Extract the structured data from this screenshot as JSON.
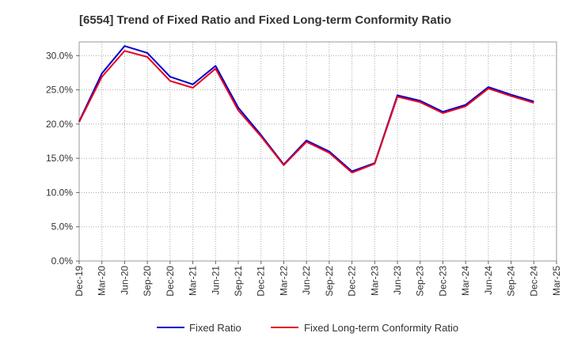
{
  "chart_data": {
    "type": "line",
    "title": "[6554]  Trend of Fixed Ratio and Fixed Long-term Conformity Ratio",
    "xlabel": "",
    "ylabel": "",
    "x": [
      "Dec-19",
      "Mar-20",
      "Jun-20",
      "Sep-20",
      "Dec-20",
      "Mar-21",
      "Jun-21",
      "Sep-21",
      "Dec-21",
      "Mar-22",
      "Jun-22",
      "Sep-22",
      "Dec-22",
      "Mar-23",
      "Jun-23",
      "Sep-23",
      "Dec-23",
      "Mar-24",
      "Jun-24",
      "Sep-24",
      "Dec-24",
      "Mar-25"
    ],
    "ylim": [
      0,
      32
    ],
    "yticks": [
      0,
      5,
      10,
      15,
      20,
      25,
      30
    ],
    "ytick_labels": [
      "0.0%",
      "5.0%",
      "10.0%",
      "15.0%",
      "20.0%",
      "25.0%",
      "30.0%"
    ],
    "grid": true,
    "legend_position": "bottom",
    "series": [
      {
        "name": "Fixed Ratio",
        "color": "#0000cc",
        "values": [
          20.4,
          27.4,
          31.4,
          30.4,
          26.9,
          25.8,
          28.5,
          22.4,
          18.4,
          14.1,
          17.6,
          16.0,
          13.1,
          14.3,
          24.2,
          23.4,
          21.8,
          22.8,
          25.4,
          24.3,
          23.3,
          null
        ]
      },
      {
        "name": "Fixed Long-term Conformity Ratio",
        "color": "#e8001c",
        "values": [
          20.3,
          26.9,
          30.7,
          29.8,
          26.3,
          25.3,
          28.1,
          22.0,
          18.2,
          14.0,
          17.4,
          15.8,
          12.9,
          14.2,
          24.0,
          23.2,
          21.6,
          22.6,
          25.2,
          24.1,
          23.1,
          null
        ]
      }
    ]
  }
}
